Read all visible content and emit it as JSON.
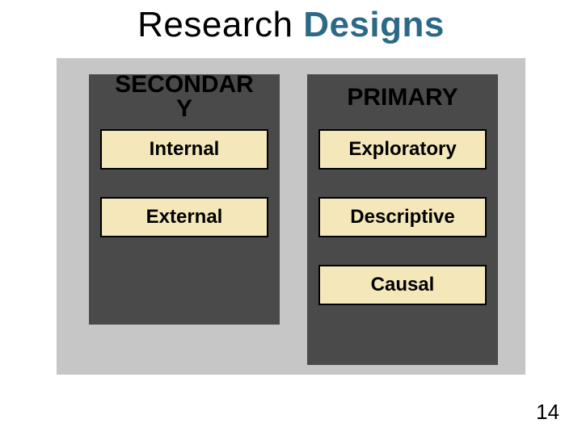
{
  "title": {
    "word1": "Research",
    "word2": "Designs"
  },
  "panel": {
    "background_color": "#c6c6c6",
    "column_background_color": "#4a4a4a",
    "item_background_color": "#f4e8bb",
    "item_border_color": "#000000",
    "title_accent_color": "#2b6a87"
  },
  "columns": {
    "left": {
      "header_line1": "SECONDAR",
      "header_line2": "Y",
      "items": [
        "Internal",
        "External"
      ]
    },
    "right": {
      "header": "PRIMARY",
      "items": [
        "Exploratory",
        "Descriptive",
        "Causal"
      ]
    }
  },
  "page_number": "14"
}
